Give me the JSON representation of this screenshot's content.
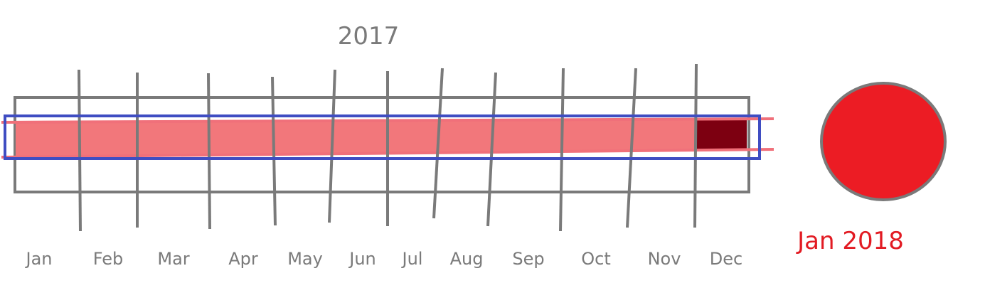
{
  "year_title": "2017",
  "months": [
    "Jan",
    "Feb",
    "Mar",
    "Apr",
    "May",
    "Jun",
    "Jul",
    "Aug",
    "Sep",
    "Oct",
    "Nov",
    "Dec"
  ],
  "highlighted_month": "Dec",
  "next_label": "Jan 2018",
  "colors": {
    "gray": "#7a7a7a",
    "bar_fill": "#f2777b",
    "bar_edge": "#f0707a",
    "highlight": "#7d0011",
    "selection_outline": "#3f4dc2",
    "circle_fill": "#ec1c24",
    "circle_stroke": "#7a7a7a",
    "next_label": "#e21b23"
  }
}
